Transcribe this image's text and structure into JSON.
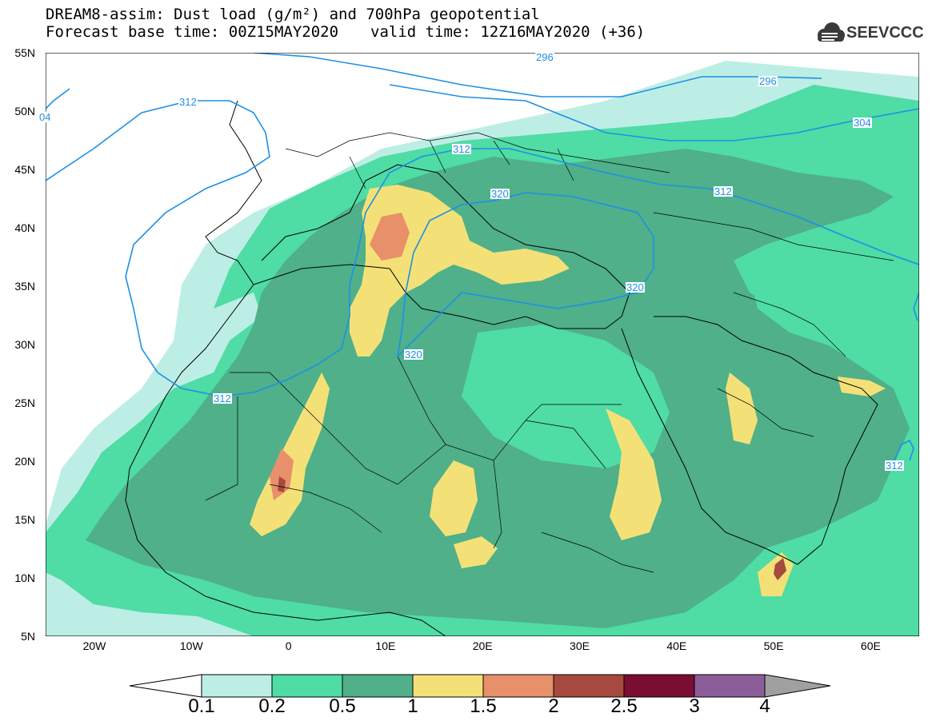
{
  "header": {
    "title_line1": "DREAM8-assim: Dust load (g/m²) and 700hPa geopotential",
    "base_time_label": "Forecast base time: 00Z15MAY2020",
    "valid_time_label": "valid time: 12Z16MAY2020 (+36)"
  },
  "logo": {
    "text": "SEEVCCC",
    "icon": "cloud-logo-icon"
  },
  "map": {
    "lat_labels": [
      "55N",
      "50N",
      "45N",
      "40N",
      "35N",
      "30N",
      "25N",
      "20N",
      "15N",
      "10N",
      "5N"
    ],
    "lon_labels": [
      "20W",
      "10W",
      "0",
      "10E",
      "20E",
      "30E",
      "40E",
      "50E",
      "60E"
    ],
    "contour_labels": [
      "296",
      "296",
      "304",
      "312",
      "312",
      "312",
      "320",
      "320",
      "320",
      "312",
      "312",
      "04"
    ],
    "colors": {
      "c1": "#bdeee5",
      "c2": "#4fdca5",
      "c3": "#4fb08a",
      "c4": "#f3e178",
      "c5": "#e8906a",
      "c6": "#a6493e",
      "c7": "#7a0d32",
      "c8": "#8b5e9a",
      "c9": "#a0a0a0",
      "contour": "#1e90e6",
      "border": "#000000"
    }
  },
  "colorbar": {
    "labels": [
      "0.1",
      "0.2",
      "0.5",
      "1",
      "1.5",
      "2",
      "2.5",
      "3",
      "4"
    ]
  }
}
